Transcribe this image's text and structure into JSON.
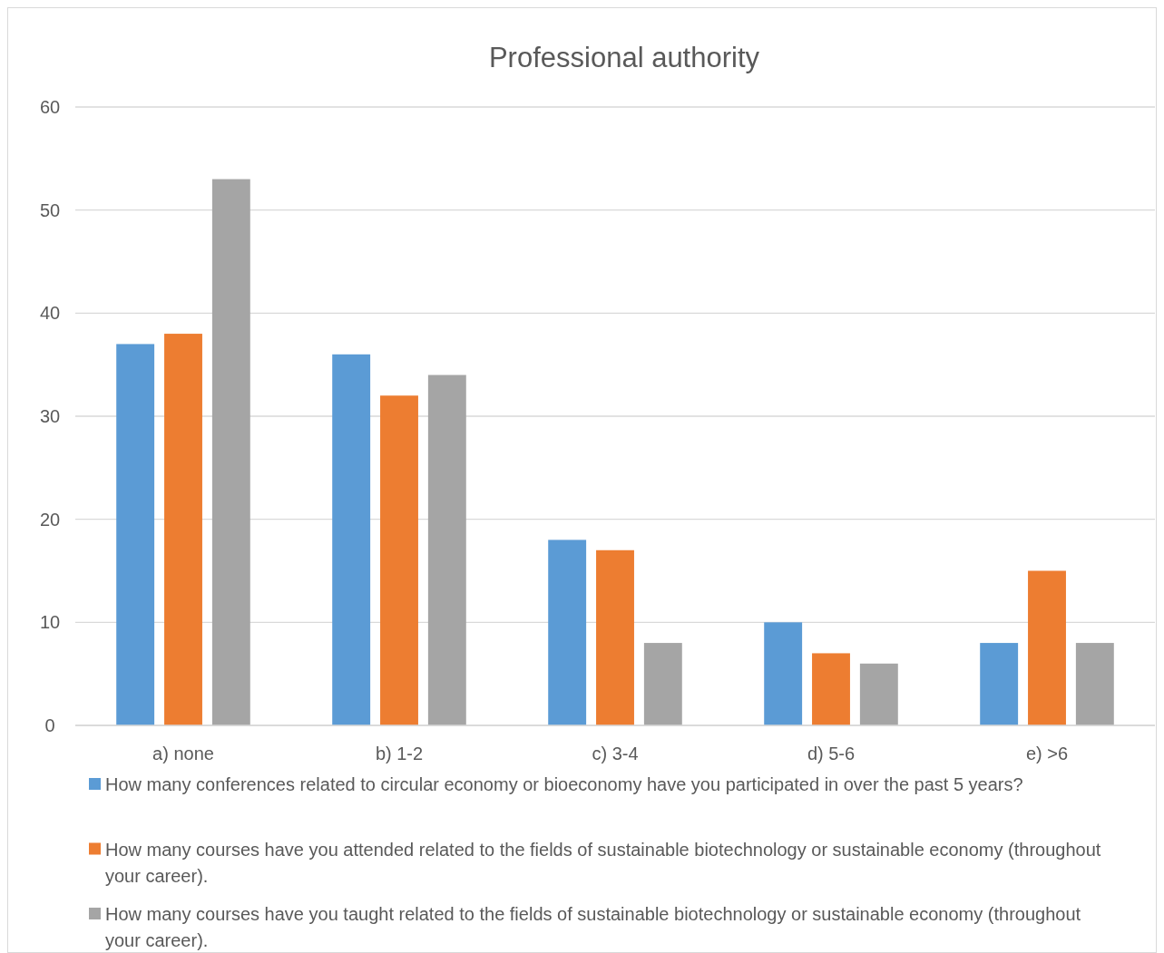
{
  "chart_data": {
    "type": "bar",
    "title": "Professional authority",
    "categories": [
      "a) none",
      "b) 1-2",
      "c) 3-4",
      "d) 5-6",
      "e) >6"
    ],
    "series": [
      {
        "name": "How many conferences related to circular economy or bioeconomy have you participated in over the past 5 years?",
        "color": "#5b9bd5",
        "values": [
          37,
          36,
          18,
          10,
          8
        ]
      },
      {
        "name": "How many courses have you attended related to the fields of sustainable biotechnology or sustainable economy (throughout your career).",
        "color": "#ed7d31",
        "values": [
          38,
          32,
          17,
          7,
          15
        ]
      },
      {
        "name": "How many courses have you taught related to the fields of sustainable biotechnology or sustainable economy (throughout your career).",
        "color": "#a5a5a5",
        "values": [
          53,
          34,
          8,
          6,
          8
        ]
      }
    ],
    "ylim": [
      0,
      60
    ],
    "yticks": [
      0,
      10,
      20,
      30,
      40,
      50,
      60
    ],
    "grid": "y",
    "legend": "bottom"
  }
}
